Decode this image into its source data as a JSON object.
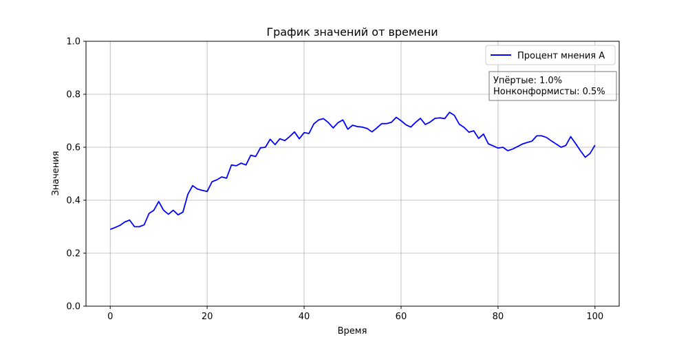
{
  "chart_data": {
    "type": "line",
    "title": "График значений от времени",
    "xlabel": "Время",
    "ylabel": "Значения",
    "xlim": [
      -5,
      105
    ],
    "ylim": [
      0,
      1
    ],
    "xticks": [
      0,
      20,
      40,
      60,
      80,
      100
    ],
    "yticks": [
      0.0,
      0.2,
      0.4,
      0.6,
      0.8,
      1.0
    ],
    "xtick_labels": [
      "0",
      "20",
      "40",
      "60",
      "80",
      "100"
    ],
    "ytick_labels": [
      "0.0",
      "0.2",
      "0.4",
      "0.6",
      "0.8",
      "1.0"
    ],
    "grid": true,
    "legend_position": "top-right",
    "series": [
      {
        "name": "Процент мнения А",
        "color": "#0000ff",
        "x": [
          0,
          1,
          2,
          3,
          4,
          5,
          6,
          7,
          8,
          9,
          10,
          11,
          12,
          13,
          14,
          15,
          16,
          17,
          18,
          19,
          20,
          21,
          22,
          23,
          24,
          25,
          26,
          27,
          28,
          29,
          30,
          31,
          32,
          33,
          34,
          35,
          36,
          37,
          38,
          39,
          40,
          41,
          42,
          43,
          44,
          45,
          46,
          47,
          48,
          49,
          50,
          51,
          52,
          53,
          54,
          55,
          56,
          57,
          58,
          59,
          60,
          61,
          62,
          63,
          64,
          65,
          66,
          67,
          68,
          69,
          70,
          71,
          72,
          73,
          74,
          75,
          76,
          77,
          78,
          79,
          80,
          81,
          82,
          83,
          84,
          85,
          86,
          87,
          88,
          89,
          90,
          91,
          92,
          93,
          94,
          95,
          96,
          97,
          98,
          99,
          100
        ],
        "values": [
          0.29,
          0.297,
          0.305,
          0.318,
          0.325,
          0.3,
          0.3,
          0.307,
          0.35,
          0.362,
          0.395,
          0.362,
          0.347,
          0.362,
          0.345,
          0.355,
          0.422,
          0.455,
          0.442,
          0.437,
          0.433,
          0.47,
          0.477,
          0.488,
          0.483,
          0.533,
          0.53,
          0.54,
          0.533,
          0.57,
          0.565,
          0.598,
          0.6,
          0.63,
          0.61,
          0.632,
          0.625,
          0.64,
          0.658,
          0.632,
          0.655,
          0.652,
          0.688,
          0.703,
          0.708,
          0.693,
          0.673,
          0.693,
          0.703,
          0.668,
          0.683,
          0.678,
          0.676,
          0.671,
          0.658,
          0.673,
          0.689,
          0.689,
          0.694,
          0.713,
          0.7,
          0.685,
          0.676,
          0.694,
          0.709,
          0.686,
          0.695,
          0.709,
          0.711,
          0.708,
          0.732,
          0.72,
          0.687,
          0.675,
          0.657,
          0.662,
          0.633,
          0.65,
          0.613,
          0.605,
          0.597,
          0.6,
          0.587,
          0.593,
          0.602,
          0.612,
          0.618,
          0.623,
          0.643,
          0.643,
          0.637,
          0.624,
          0.612,
          0.6,
          0.607,
          0.64,
          0.614,
          0.587,
          0.562,
          0.577,
          0.608
        ]
      }
    ],
    "annotation_lines": [
      "Упёртые: 1.0%",
      "Нонконформисты: 0.5%"
    ]
  }
}
